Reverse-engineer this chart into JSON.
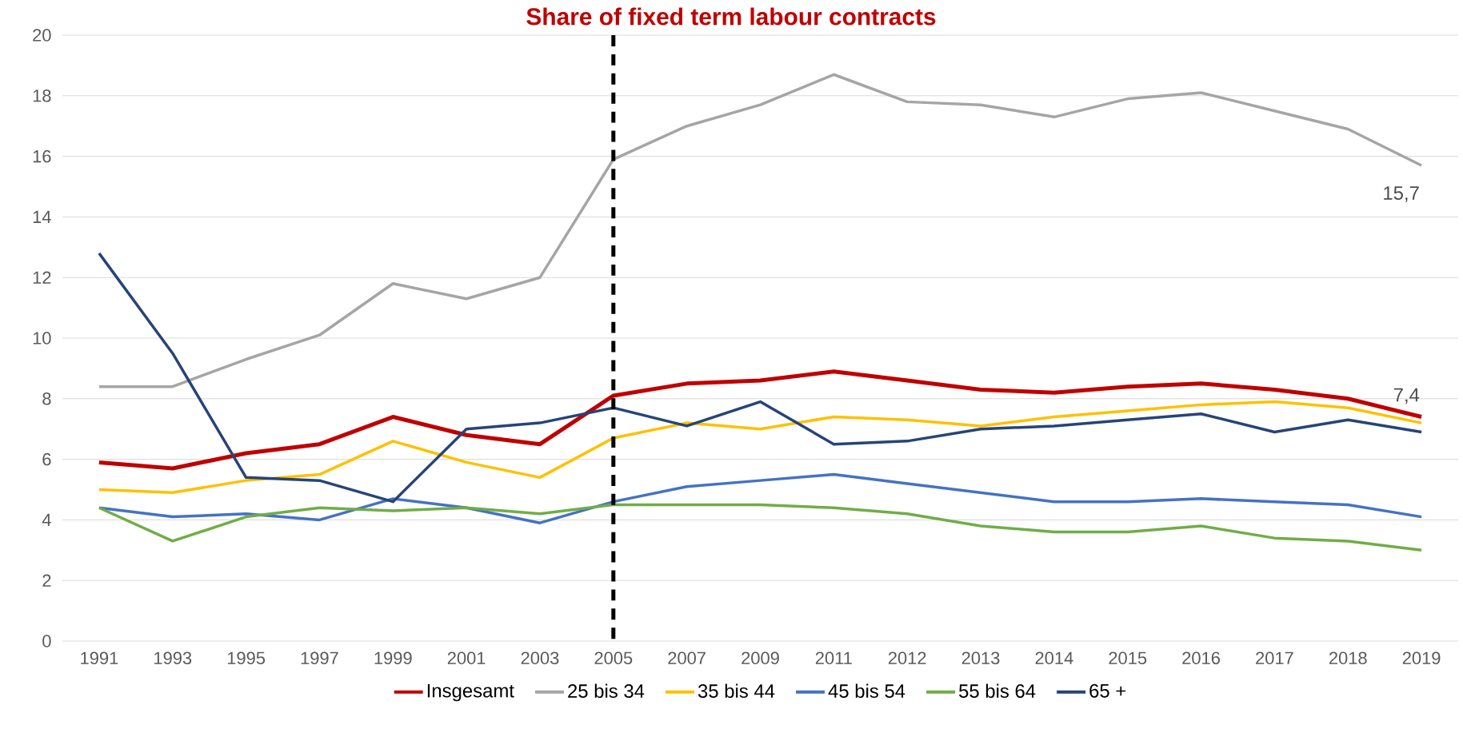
{
  "chart_data": {
    "type": "line",
    "title": "Share of fixed term labour contracts",
    "categories": [
      "1991",
      "1993",
      "1995",
      "1997",
      "1999",
      "2001",
      "2003",
      "2005",
      "2007",
      "2009",
      "2011",
      "2012",
      "2013",
      "2014",
      "2015",
      "2016",
      "2017",
      "2018",
      "2019"
    ],
    "series": [
      {
        "name": "Insgesamt",
        "color": "#c00000",
        "values": [
          5.9,
          5.7,
          6.2,
          6.5,
          7.4,
          6.8,
          6.5,
          8.1,
          8.5,
          8.6,
          8.9,
          8.6,
          8.3,
          8.2,
          8.4,
          8.5,
          8.3,
          8.0,
          7.4
        ]
      },
      {
        "name": "25 bis 34",
        "color": "#a5a5a5",
        "values": [
          8.4,
          8.4,
          9.3,
          10.1,
          11.8,
          11.3,
          12.0,
          15.9,
          17.0,
          17.7,
          18.7,
          17.8,
          17.7,
          17.3,
          17.9,
          18.1,
          17.5,
          16.9,
          15.7
        ]
      },
      {
        "name": "35 bis 44",
        "color": "#ffc000",
        "values": [
          5.0,
          4.9,
          5.3,
          5.5,
          6.6,
          5.9,
          5.4,
          6.7,
          7.2,
          7.0,
          7.4,
          7.3,
          7.1,
          7.4,
          7.6,
          7.8,
          7.9,
          7.7,
          7.2
        ]
      },
      {
        "name": "45 bis 54",
        "color": "#4472c4",
        "values": [
          4.4,
          4.1,
          4.2,
          4.0,
          4.7,
          4.4,
          3.9,
          4.6,
          5.1,
          5.3,
          5.5,
          5.2,
          4.9,
          4.6,
          4.6,
          4.7,
          4.6,
          4.5,
          4.1
        ]
      },
      {
        "name": "55 bis 64",
        "color": "#70ad47",
        "values": [
          4.4,
          3.3,
          4.1,
          4.4,
          4.3,
          4.4,
          4.2,
          4.5,
          4.5,
          4.5,
          4.4,
          4.2,
          3.8,
          3.6,
          3.6,
          3.8,
          3.4,
          3.3,
          3.0
        ]
      },
      {
        "name": "65 +",
        "color": "#264478",
        "values": [
          12.8,
          9.5,
          5.4,
          5.3,
          4.6,
          7.0,
          7.2,
          7.7,
          7.1,
          7.9,
          6.5,
          6.6,
          7.0,
          7.1,
          7.3,
          7.5,
          6.9,
          7.3,
          6.9
        ]
      }
    ],
    "ylim": [
      0,
      20
    ],
    "yticks": [
      0,
      2,
      4,
      6,
      8,
      10,
      12,
      14,
      16,
      18,
      20
    ],
    "grid": "y",
    "legend": "bottom",
    "marker": "none",
    "line_style": "solid",
    "ref_lines": [
      {
        "axis": "x",
        "value": "2005",
        "color": "#000000",
        "line_style": "dashed"
      }
    ],
    "annotations": [
      {
        "text": "15,7",
        "x": "2019",
        "y": 15.7
      },
      {
        "text": "7,4",
        "x": "2019",
        "y": 7.4
      }
    ]
  }
}
